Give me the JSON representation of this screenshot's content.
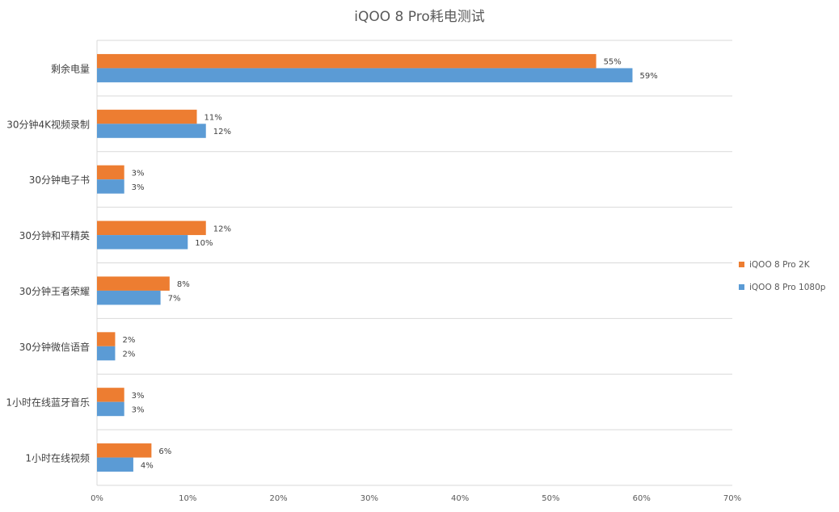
{
  "chart_data": {
    "type": "bar",
    "orientation": "horizontal",
    "title": "iQOO 8 Pro耗电测试",
    "categories": [
      "剩余电量",
      "30分钟4K视频录制",
      "30分钟电子书",
      "30分钟和平精英",
      "30分钟王者荣耀",
      "30分钟微信语音",
      "1小时在线蓝牙音乐",
      "1小时在线视频"
    ],
    "series": [
      {
        "name": "iQOO 8 Pro 2K",
        "color": "#ED7D31",
        "values": [
          55,
          11,
          3,
          12,
          8,
          2,
          3,
          6
        ],
        "labels": [
          "55%",
          "11%",
          "3%",
          "12%",
          "8%",
          "2%",
          "3%",
          "6%"
        ]
      },
      {
        "name": "iQOO 8 Pro 1080p",
        "color": "#5B9BD5",
        "values": [
          59,
          12,
          3,
          10,
          7,
          2,
          3,
          4
        ],
        "labels": [
          "59%",
          "12%",
          "3%",
          "10%",
          "7%",
          "2%",
          "3%",
          "4%"
        ]
      }
    ],
    "xlim": [
      0,
      70
    ],
    "xticks": [
      0,
      10,
      20,
      30,
      40,
      50,
      60,
      70
    ],
    "xtick_labels": [
      "0%",
      "10%",
      "20%",
      "30%",
      "40%",
      "50%",
      "60%",
      "70%"
    ],
    "xlabel": "",
    "ylabel": "",
    "grid": "horizontal separators",
    "legend_position": "right"
  }
}
